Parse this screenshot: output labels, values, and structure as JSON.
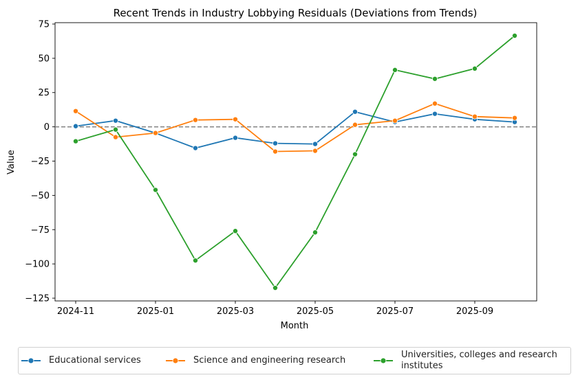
{
  "chart_data": {
    "type": "line",
    "title": "Recent Trends in Industry Lobbying Residuals (Deviations from Trends)",
    "xlabel": "Month",
    "ylabel": "Value",
    "x": [
      "2024-11",
      "2024-12",
      "2025-01",
      "2025-02",
      "2025-03",
      "2025-04",
      "2025-05",
      "2025-06",
      "2025-07",
      "2025-08",
      "2025-09",
      "2025-10"
    ],
    "xticks": [
      "2024-11",
      "2025-01",
      "2025-03",
      "2025-05",
      "2025-07",
      "2025-09"
    ],
    "ylim": [
      -127,
      76
    ],
    "yticks": [
      75,
      50,
      25,
      0,
      -25,
      -50,
      -75,
      -100,
      -125
    ],
    "ytick_labels": [
      "75",
      "50",
      "25",
      "0",
      "−25",
      "−50",
      "−75",
      "−100",
      "−125"
    ],
    "reference_line": 0,
    "series": [
      {
        "name": "Educational services",
        "color": "#1f77b4",
        "values": [
          0.5,
          4.5,
          -4.5,
          -15.5,
          -8,
          -12,
          -12.5,
          11,
          3.5,
          9.5,
          5.5,
          3.5
        ]
      },
      {
        "name": "Science and engineering research",
        "color": "#ff7f0e",
        "values": [
          11.5,
          -7.5,
          -4.5,
          5,
          5.5,
          -18,
          -17.5,
          1.5,
          4.5,
          17,
          7.5,
          6.5
        ]
      },
      {
        "name": "Universities, colleges and research institutes",
        "color": "#2ca02c",
        "values": [
          -10.5,
          -2,
          -46,
          -97.5,
          -76,
          -117.5,
          -77,
          -20,
          41.5,
          35,
          42.5,
          66.5
        ]
      }
    ],
    "legend": {
      "placement": "bottom",
      "labels": [
        "Educational services",
        "Science and engineering research",
        "Universities, colleges and research\ninstitutes"
      ]
    }
  }
}
